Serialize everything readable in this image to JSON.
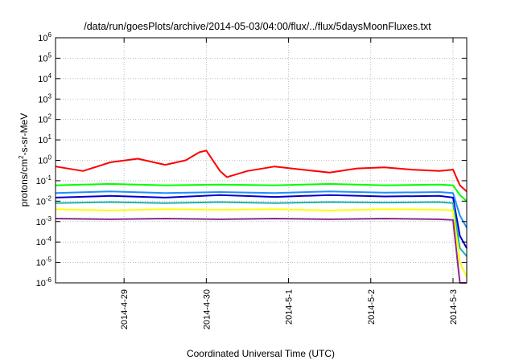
{
  "chart_data": {
    "type": "line",
    "title": "/data/run/goesPlots/archive/2014-05-03/04:00/flux/../flux/5daysMoonFluxes.txt",
    "xlabel": "Coordinated Universal Time (UTC)",
    "ylabel_parts": [
      "protons/cm",
      "2",
      "-s-sr-MeV"
    ],
    "y_scale": "log",
    "ylim": [
      1e-06,
      1000000.0
    ],
    "y_ticks": [
      {
        "base": "10",
        "exp": "-6",
        "value": 1e-06
      },
      {
        "base": "10",
        "exp": "-5",
        "value": 1e-05
      },
      {
        "base": "10",
        "exp": "-4",
        "value": 0.0001
      },
      {
        "base": "10",
        "exp": "-3",
        "value": 0.001
      },
      {
        "base": "10",
        "exp": "-2",
        "value": 0.01
      },
      {
        "base": "10",
        "exp": "-1",
        "value": 0.1
      },
      {
        "base": "10",
        "exp": "0",
        "value": 1
      },
      {
        "base": "10",
        "exp": "1",
        "value": 10
      },
      {
        "base": "10",
        "exp": "2",
        "value": 100
      },
      {
        "base": "10",
        "exp": "3",
        "value": 1000
      },
      {
        "base": "10",
        "exp": "4",
        "value": 10000
      },
      {
        "base": "10",
        "exp": "5",
        "value": 100000
      },
      {
        "base": "10",
        "exp": "6",
        "value": 1000000
      }
    ],
    "xlim": [
      "2014-04-28 04:00",
      "2014-05-03 04:00"
    ],
    "x_ticks": [
      "2014-4-29",
      "2014-4-30",
      "2014-5-1",
      "2014-5-2",
      "2014-5-3"
    ],
    "grid": true,
    "legend": "none",
    "series": [
      {
        "color": "#ff0000",
        "x": [
          "2014-04-28 04:00",
          "2014-04-28 12:00",
          "2014-04-28 20:00",
          "2014-04-29 04:00",
          "2014-04-29 12:00",
          "2014-04-29 18:00",
          "2014-04-29 22:00",
          "2014-04-30 00:00",
          "2014-04-30 04:00",
          "2014-04-30 06:00",
          "2014-04-30 12:00",
          "2014-04-30 20:00",
          "2014-05-01 04:00",
          "2014-05-01 12:00",
          "2014-05-01 20:00",
          "2014-05-02 04:00",
          "2014-05-02 12:00",
          "2014-05-02 20:00",
          "2014-05-03 00:00",
          "2014-05-03 02:00",
          "2014-05-03 04:00"
        ],
        "y": [
          0.5,
          0.3,
          0.8,
          1.2,
          0.6,
          1.0,
          2.5,
          3.0,
          0.3,
          0.15,
          0.3,
          0.5,
          0.35,
          0.25,
          0.4,
          0.45,
          0.35,
          0.3,
          0.35,
          0.06,
          0.03
        ]
      },
      {
        "color": "#00ff00",
        "x": [
          "2014-04-28 04:00",
          "2014-04-28 20:00",
          "2014-04-29 12:00",
          "2014-04-30 04:00",
          "2014-04-30 20:00",
          "2014-05-01 12:00",
          "2014-05-02 04:00",
          "2014-05-02 20:00",
          "2014-05-03 00:00",
          "2014-05-03 02:00",
          "2014-05-03 04:00"
        ],
        "y": [
          0.06,
          0.07,
          0.06,
          0.065,
          0.06,
          0.07,
          0.06,
          0.065,
          0.06,
          0.02,
          0.01
        ]
      },
      {
        "color": "#1e90ff",
        "x": [
          "2014-04-28 04:00",
          "2014-04-28 20:00",
          "2014-04-29 12:00",
          "2014-04-30 04:00",
          "2014-04-30 20:00",
          "2014-05-01 12:00",
          "2014-05-02 04:00",
          "2014-05-02 20:00",
          "2014-05-03 00:00",
          "2014-05-03 02:00",
          "2014-05-03 04:00"
        ],
        "y": [
          0.025,
          0.03,
          0.025,
          0.028,
          0.025,
          0.03,
          0.026,
          0.028,
          0.025,
          0.002,
          0.0005
        ]
      },
      {
        "color": "#0000cd",
        "x": [
          "2014-04-28 04:00",
          "2014-04-28 20:00",
          "2014-04-29 12:00",
          "2014-04-30 04:00",
          "2014-04-30 20:00",
          "2014-05-01 12:00",
          "2014-05-02 04:00",
          "2014-05-02 20:00",
          "2014-05-03 00:00",
          "2014-05-03 02:00",
          "2014-05-03 04:00"
        ],
        "y": [
          0.015,
          0.018,
          0.015,
          0.02,
          0.016,
          0.02,
          0.017,
          0.018,
          0.015,
          0.0002,
          5e-05
        ]
      },
      {
        "color": "#20b2aa",
        "x": [
          "2014-04-28 04:00",
          "2014-04-28 20:00",
          "2014-04-29 12:00",
          "2014-04-30 04:00",
          "2014-04-30 20:00",
          "2014-05-01 12:00",
          "2014-05-02 04:00",
          "2014-05-02 20:00",
          "2014-05-03 00:00",
          "2014-05-03 02:00",
          "2014-05-03 04:00"
        ],
        "y": [
          0.008,
          0.009,
          0.008,
          0.009,
          0.008,
          0.009,
          0.0085,
          0.009,
          0.008,
          5e-05,
          2e-05
        ]
      },
      {
        "color": "#ffff00",
        "x": [
          "2014-04-28 04:00",
          "2014-04-28 20:00",
          "2014-04-29 12:00",
          "2014-04-30 04:00",
          "2014-04-30 20:00",
          "2014-05-01 12:00",
          "2014-05-02 04:00",
          "2014-05-02 20:00",
          "2014-05-03 00:00",
          "2014-05-03 02:00",
          "2014-05-03 04:00"
        ],
        "y": [
          0.004,
          0.0035,
          0.004,
          0.0038,
          0.004,
          0.0035,
          0.004,
          0.0038,
          0.0035,
          1e-05,
          2e-06
        ]
      },
      {
        "color": "#8b2a8b",
        "x": [
          "2014-04-28 04:00",
          "2014-04-28 20:00",
          "2014-04-29 12:00",
          "2014-04-30 04:00",
          "2014-04-30 20:00",
          "2014-05-01 12:00",
          "2014-05-02 04:00",
          "2014-05-02 20:00",
          "2014-05-03 00:00",
          "2014-05-03 02:00",
          "2014-05-03 04:00"
        ],
        "y": [
          0.0014,
          0.0013,
          0.0014,
          0.0013,
          0.0014,
          0.0013,
          0.0014,
          0.0013,
          0.0012,
          1e-06,
          1e-06
        ]
      }
    ]
  }
}
